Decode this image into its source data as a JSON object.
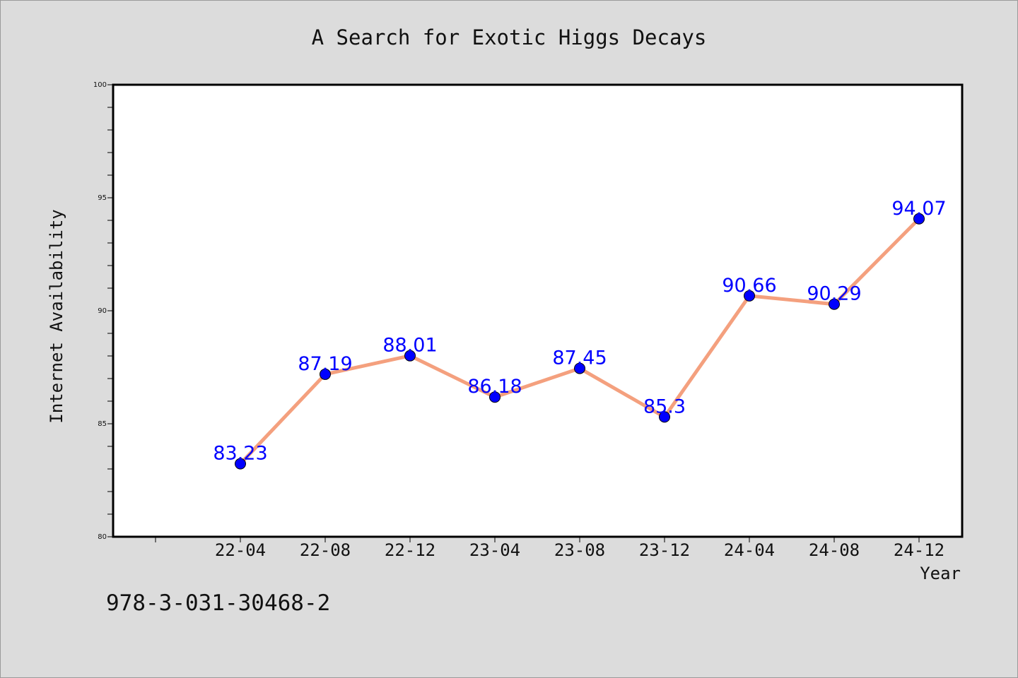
{
  "chart_data": {
    "type": "line",
    "title": "A Search for Exotic Higgs Decays",
    "xlabel": "Year",
    "ylabel": "Internet Availability",
    "categories": [
      "22-04",
      "22-08",
      "22-12",
      "23-04",
      "23-08",
      "23-12",
      "24-04",
      "24-08",
      "24-12"
    ],
    "series": [
      {
        "values": [
          83.23,
          87.19,
          88.01,
          86.18,
          87.45,
          85.3,
          90.66,
          90.29,
          94.07
        ]
      }
    ],
    "data_labels": [
      "83.23",
      "87.19",
      "88.01",
      "86.18",
      "87.45",
      "85.3",
      "90.66",
      "90.29",
      "94.07"
    ],
    "ylim": [
      80,
      100
    ],
    "yticks": [
      80,
      85,
      90,
      95,
      100
    ],
    "grid": false,
    "legend": "none",
    "colors": {
      "line": "#f4a07e",
      "marker": "#0000ff",
      "label": "#0000ff",
      "background": "#dcdcdc",
      "plot_background": "#ffffff"
    },
    "annotation": "978-3-031-30468-2"
  }
}
